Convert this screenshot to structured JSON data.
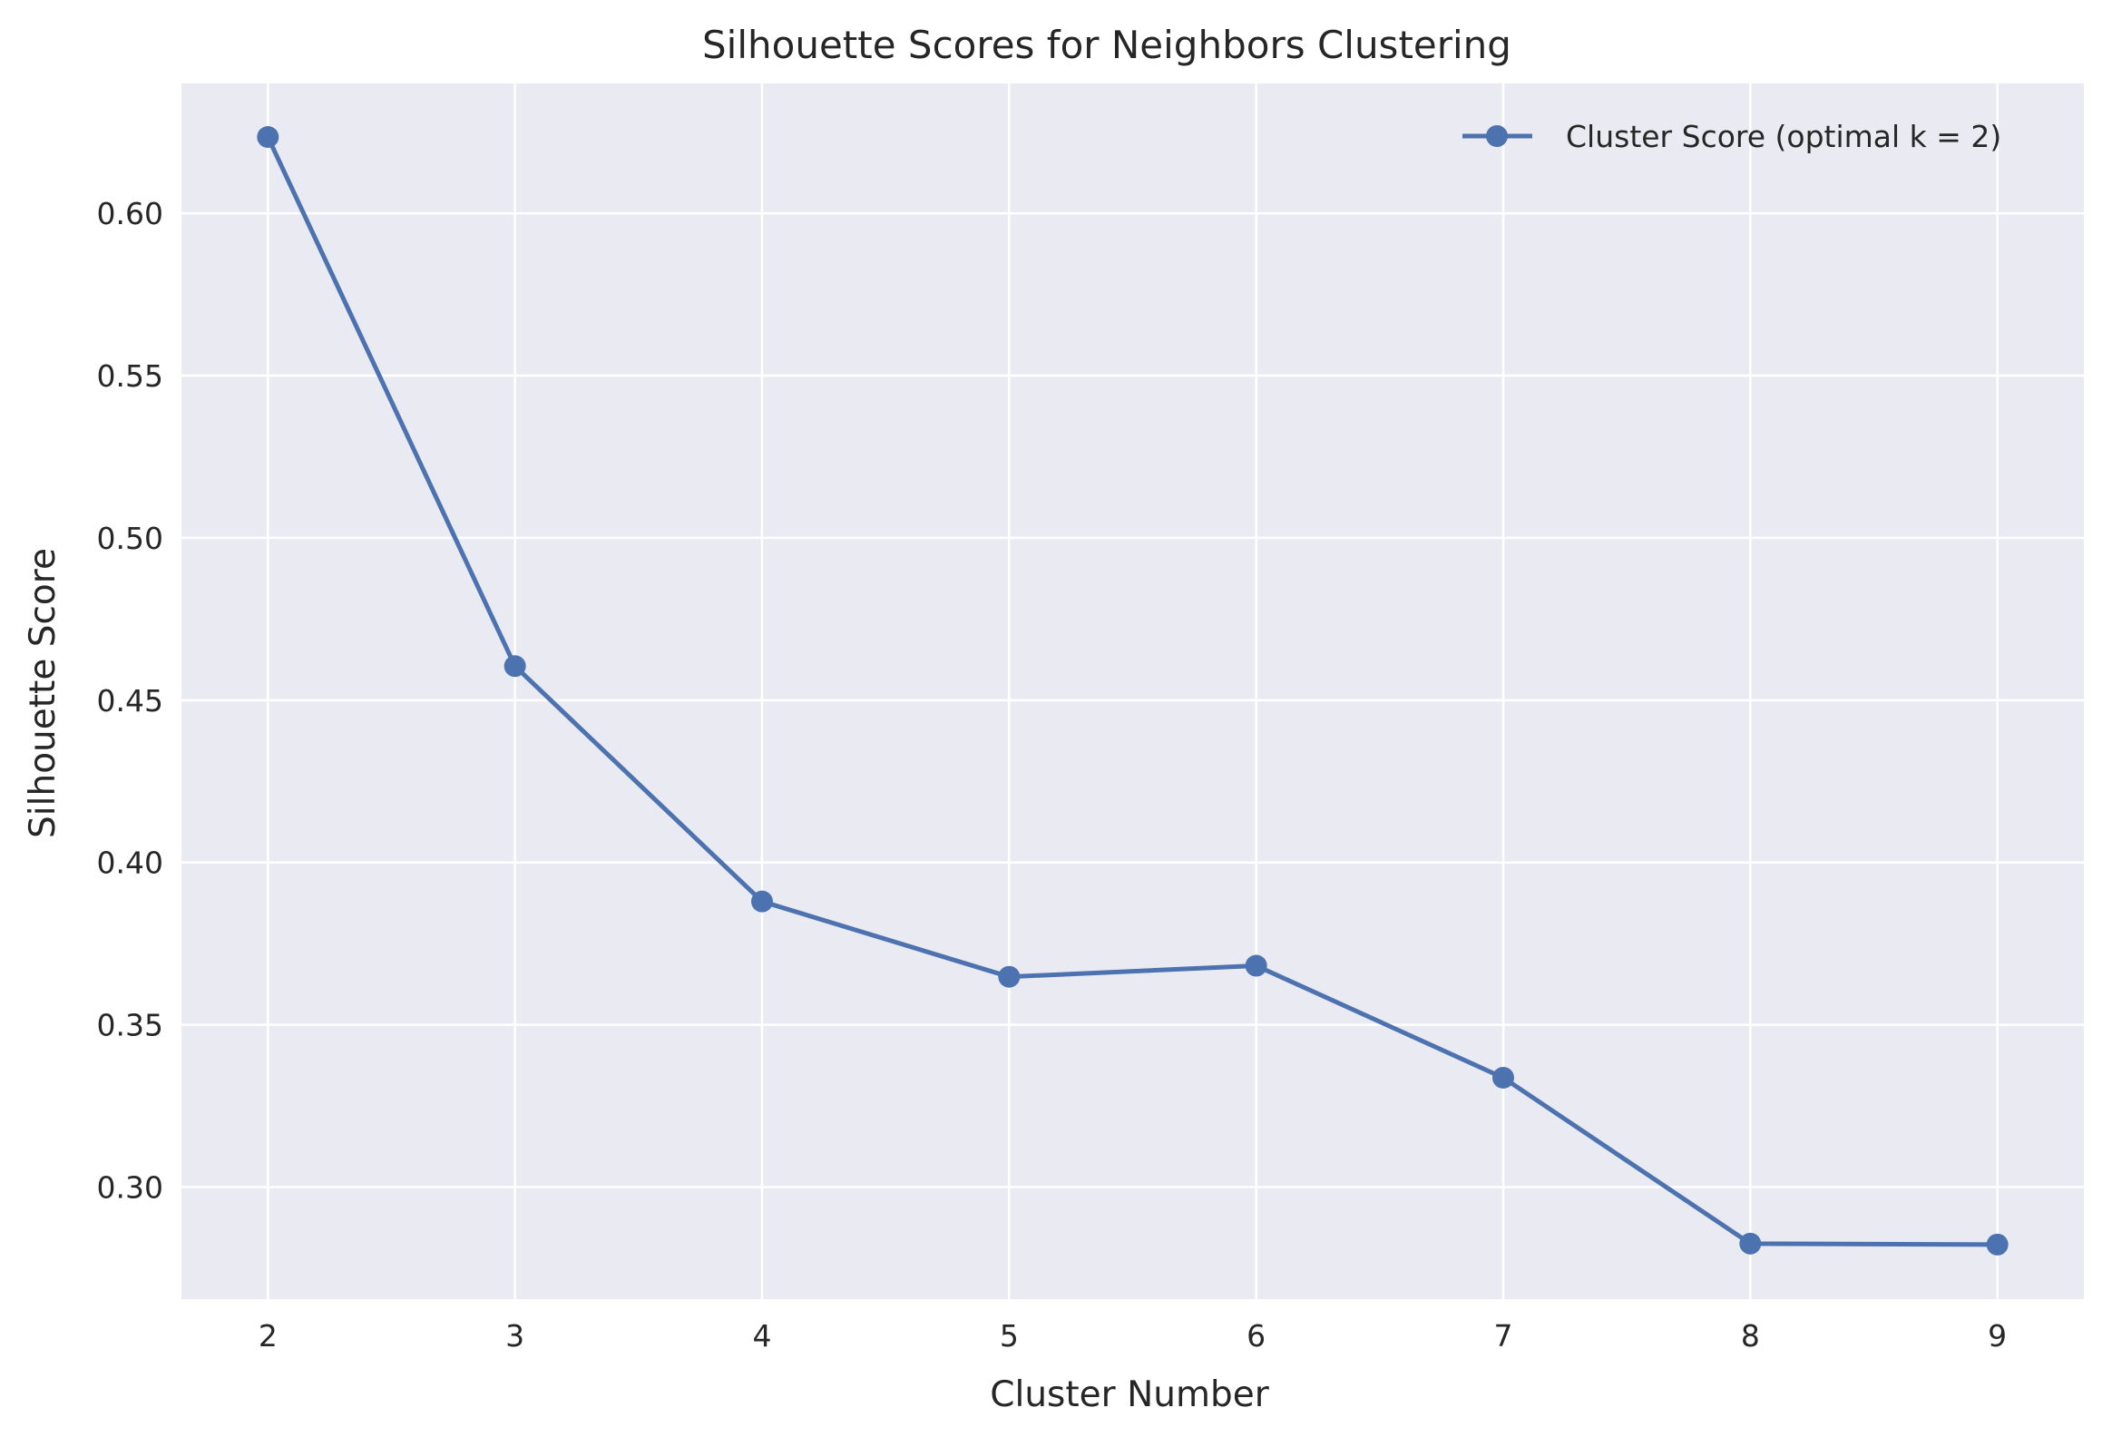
{
  "chart_data": {
    "type": "line",
    "title": "Silhouette Scores for Neighbors Clustering",
    "xlabel": "Cluster Number",
    "ylabel": "Silhouette Score",
    "x": [
      2,
      3,
      4,
      5,
      6,
      7,
      8,
      9
    ],
    "series": [
      {
        "name": "Cluster Score (optimal k = 2)",
        "values": [
          0.6235,
          0.4605,
          0.388,
          0.3648,
          0.3682,
          0.3337,
          0.2826,
          0.2823
        ],
        "color": "#4c72b0",
        "marker": "circle"
      }
    ],
    "xlim": [
      1.65,
      9.35
    ],
    "ylim": [
      0.2655,
      0.64
    ],
    "xticks": [
      "2",
      "3",
      "4",
      "5",
      "6",
      "7",
      "8",
      "9"
    ],
    "yticks": [
      "0.30",
      "0.35",
      "0.40",
      "0.45",
      "0.50",
      "0.55",
      "0.60"
    ],
    "legend_position": "top-right",
    "grid": true,
    "background_color": "#eaeaf2",
    "grid_color": "#ffffff"
  }
}
